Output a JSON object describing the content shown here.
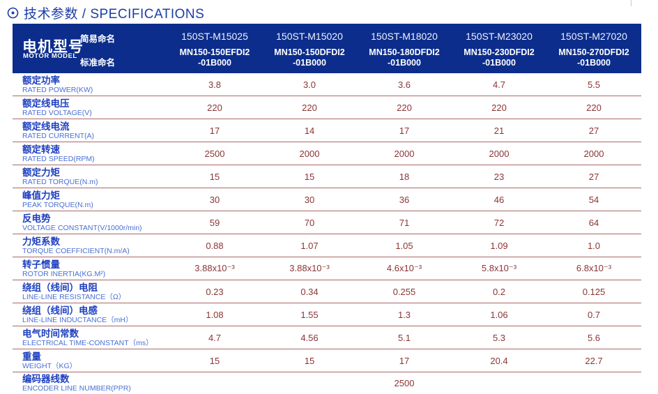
{
  "title": {
    "text": "技术参数 / SPECIFICATIONS"
  },
  "header": {
    "motor_model_zh": "电机型号",
    "motor_model_en": "MOTOR MODEL",
    "simple_name_label": "简易命名",
    "standard_name_label": "标准命名",
    "columns": [
      {
        "simple": "150ST-M15025",
        "std1": "MN150-150EFDI2",
        "std2": "-01B000"
      },
      {
        "simple": "150ST-M15020",
        "std1": "MN150-150DFDI2",
        "std2": "-01B000"
      },
      {
        "simple": "150ST-M18020",
        "std1": "MN150-180DFDI2",
        "std2": "-01B000"
      },
      {
        "simple": "150ST-M23020",
        "std1": "MN150-230DFDI2",
        "std2": "-01B000"
      },
      {
        "simple": "150ST-M27020",
        "std1": "MN150-270DFDI2",
        "std2": "-01B000"
      }
    ]
  },
  "rows": [
    {
      "zh": "额定功率",
      "en": "RATED POWER(KW)",
      "values": [
        "3.8",
        "3.0",
        "3.6",
        "4.7",
        "5.5"
      ]
    },
    {
      "zh": "额定线电压",
      "en": "RATED VOLTAGE(V)",
      "values": [
        "220",
        "220",
        "220",
        "220",
        "220"
      ]
    },
    {
      "zh": "额定线电流",
      "en": "RATED CURRENT(A)",
      "values": [
        "17",
        "14",
        "17",
        "21",
        "27"
      ]
    },
    {
      "zh": "额定转速",
      "en": "RATED SPEED(RPM)",
      "values": [
        "2500",
        "2000",
        "2000",
        "2000",
        "2000"
      ]
    },
    {
      "zh": "额定力矩",
      "en": "RATED TORQUE(N.m)",
      "values": [
        "15",
        "15",
        "18",
        "23",
        "27"
      ]
    },
    {
      "zh": "峰值力矩",
      "en": "PEAK TORQUE(N.m)",
      "values": [
        "30",
        "30",
        "36",
        "46",
        "54"
      ]
    },
    {
      "zh": "反电势",
      "en": "VOLTAGE CONSTANT(V/1000r/min)",
      "values": [
        "59",
        "70",
        "71",
        "72",
        "64"
      ]
    },
    {
      "zh": "力矩系数",
      "en": "TORQUE COEFFICIENT(N.m/A)",
      "values": [
        "0.88",
        "1.07",
        "1.05",
        "1.09",
        "1.0"
      ]
    },
    {
      "zh": "转子惯量",
      "en": "ROTOR INERTIA(KG.M²)",
      "values": [
        "3.88x10⁻³",
        "3.88x10⁻³",
        "4.6x10⁻³",
        "5.8x10⁻³",
        "6.8x10⁻³"
      ]
    },
    {
      "zh": "绕组（线间）电阻",
      "en": "LINE-LINE RESISTANCE（Ω）",
      "values": [
        "0.23",
        "0.34",
        "0.255",
        "0.2",
        "0.125"
      ]
    },
    {
      "zh": "绕组（线间）电感",
      "en": "LINE-LINE INDUCTANCE（mH）",
      "values": [
        "1.08",
        "1.55",
        "1.3",
        "1.06",
        "0.7"
      ]
    },
    {
      "zh": "电气时间常数",
      "en": "ELECTRICAL TIME-CONSTANT（ms）",
      "values": [
        "4.7",
        "4.56",
        "5.1",
        "5.3",
        "5.6"
      ]
    },
    {
      "zh": "重量",
      "en": "WEIGHT（KG）",
      "values": [
        "15",
        "15",
        "17",
        "20.4",
        "22.7"
      ]
    },
    {
      "zh": "编码器线数",
      "en": "ENCODER LINE NUMBER(PPR)",
      "merged_value": "2500"
    }
  ],
  "colors": {
    "title_blue": "#1c3ea6",
    "header_bg": "#0c2d8c",
    "label_zh_blue": "#1e40c0",
    "label_en_blue": "#4a6fd4",
    "value_maroon": "#8b3434",
    "separator": "#aa6868"
  }
}
